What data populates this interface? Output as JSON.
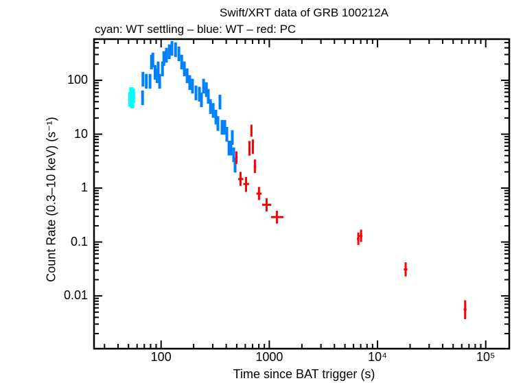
{
  "chart_data": {
    "type": "scatter",
    "title": "Swift/XRT data of GRB 100212A",
    "subtitle": "cyan: WT settling – blue: WT – red: PC",
    "xlabel": "Time since BAT trigger (s)",
    "ylabel": "Count Rate (0.3–10 keV) (s⁻¹)",
    "xscale": "log",
    "yscale": "log",
    "xlim": [
      24,
      165000
    ],
    "ylim": [
      0.00105,
      580
    ],
    "x_ticks": [
      {
        "v": 100,
        "label": "100"
      },
      {
        "v": 1000,
        "label": "1000"
      },
      {
        "v": 10000,
        "label": "10⁴"
      },
      {
        "v": 100000,
        "label": "10⁵"
      }
    ],
    "y_ticks": [
      {
        "v": 100,
        "label": "100"
      },
      {
        "v": 10,
        "label": "10"
      },
      {
        "v": 1,
        "label": "1"
      },
      {
        "v": 0.1,
        "label": "0.1"
      },
      {
        "v": 0.01,
        "label": "0.01"
      }
    ],
    "series": [
      {
        "name": "WT settling",
        "color": "#00ffff",
        "points": [
          [
            52,
            45
          ],
          [
            53,
            55
          ],
          [
            53.5,
            48
          ],
          [
            54,
            42
          ],
          [
            55,
            52
          ]
        ]
      },
      {
        "name": "WT",
        "color": "#0080ff",
        "points": [
          [
            67.4,
            48
          ],
          [
            68,
            106
          ],
          [
            73,
            97
          ],
          [
            79,
            97
          ],
          [
            81.5,
            221
          ],
          [
            84,
            241
          ],
          [
            88,
            142
          ],
          [
            92,
            123
          ],
          [
            94,
            165
          ],
          [
            97,
            97
          ],
          [
            103,
            165
          ],
          [
            106,
            256
          ],
          [
            112,
            296
          ],
          [
            119,
            343
          ],
          [
            126,
            397
          ],
          [
            136,
            374
          ],
          [
            146,
            314
          ],
          [
            155,
            221
          ],
          [
            164,
            165
          ],
          [
            174,
            123
          ],
          [
            184,
            92
          ],
          [
            195,
            79
          ],
          [
            210,
            59
          ],
          [
            226,
            56
          ],
          [
            236,
            44
          ],
          [
            247,
            79
          ],
          [
            262,
            68
          ],
          [
            273,
            51
          ],
          [
            286,
            33
          ],
          [
            303,
            28
          ],
          [
            321,
            21
          ],
          [
            335,
            16
          ],
          [
            350,
            40
          ],
          [
            366,
            13.6
          ],
          [
            388,
            13.6
          ],
          [
            405,
            10.1
          ],
          [
            424,
            5.6
          ],
          [
            442,
            5.6
          ],
          [
            455,
            8.8
          ],
          [
            469,
            4.2
          ],
          [
            483,
            2.7
          ]
        ]
      },
      {
        "name": "PC",
        "color": "#ff0000",
        "points": [
          {
            "t": 497,
            "rate": 3.7,
            "t_lo": 485,
            "t_hi": 510,
            "r_lo": 2.8,
            "r_hi": 4.8
          },
          {
            "t": 542,
            "rate": 1.47,
            "t_lo": 515,
            "t_hi": 575,
            "r_lo": 1.1,
            "r_hi": 2.0
          },
          {
            "t": 610,
            "rate": 1.19,
            "t_lo": 575,
            "t_hi": 650,
            "r_lo": 0.85,
            "r_hi": 1.6
          },
          {
            "t": 655,
            "rate": 5.5,
            "t_lo": 640,
            "t_hi": 668,
            "r_lo": 4.0,
            "r_hi": 7.5
          },
          {
            "t": 684,
            "rate": 11.7,
            "t_lo": 672,
            "t_hi": 695,
            "r_lo": 9.0,
            "r_hi": 15
          },
          {
            "t": 705,
            "rate": 6.0,
            "t_lo": 695,
            "t_hi": 718,
            "r_lo": 4.3,
            "r_hi": 8.0
          },
          {
            "t": 736,
            "rate": 2.5,
            "t_lo": 718,
            "t_hi": 755,
            "r_lo": 1.9,
            "r_hi": 3.4
          },
          {
            "t": 803,
            "rate": 0.79,
            "t_lo": 760,
            "t_hi": 850,
            "r_lo": 0.6,
            "r_hi": 1.05
          },
          {
            "t": 944,
            "rate": 0.49,
            "t_lo": 860,
            "t_hi": 1040,
            "r_lo": 0.37,
            "r_hi": 0.65
          },
          {
            "t": 1175,
            "rate": 0.29,
            "t_lo": 1040,
            "t_hi": 1350,
            "r_lo": 0.22,
            "r_hi": 0.38
          },
          {
            "t": 6650,
            "rate": 0.114,
            "t_lo": 6450,
            "t_hi": 6800,
            "r_lo": 0.088,
            "r_hi": 0.15
          },
          {
            "t": 7050,
            "rate": 0.13,
            "t_lo": 6800,
            "t_hi": 7250,
            "r_lo": 0.1,
            "r_hi": 0.17
          },
          {
            "t": 18200,
            "rate": 0.031,
            "t_lo": 17500,
            "t_hi": 18900,
            "r_lo": 0.023,
            "r_hi": 0.042
          },
          {
            "t": 64500,
            "rate": 0.0056,
            "t_lo": 62500,
            "t_hi": 66500,
            "r_lo": 0.0037,
            "r_hi": 0.0083
          }
        ]
      }
    ]
  }
}
